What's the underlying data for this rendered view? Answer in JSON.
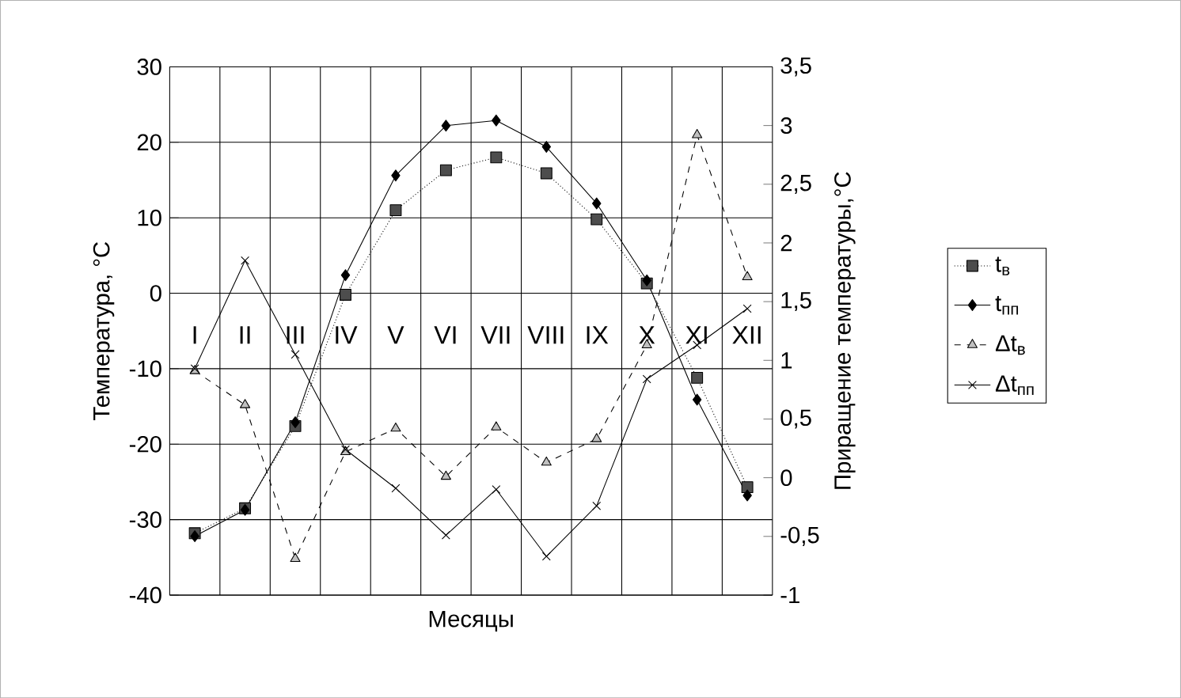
{
  "chart_data": {
    "type": "line",
    "xlabel": "Месяцы",
    "ylabel": "Температура, °C",
    "y2label": "Приращение температуры,°C",
    "categories": [
      "I",
      "II",
      "III",
      "IV",
      "V",
      "VI",
      "VII",
      "VIII",
      "IX",
      "X",
      "XI",
      "XII"
    ],
    "ylim": [
      -40,
      30
    ],
    "yticks": [
      -40,
      -30,
      -20,
      -10,
      0,
      10,
      20,
      30
    ],
    "y2lim": [
      -1,
      3.5
    ],
    "y2ticks": [
      -1,
      {
        "value": -0.5,
        "label": "-0,5"
      },
      0,
      {
        "value": 0.5,
        "label": "0,5"
      },
      1,
      {
        "value": 1.5,
        "label": "1,5"
      },
      2,
      {
        "value": 2.5,
        "label": "2,5"
      },
      3,
      {
        "value": 3.5,
        "label": "3,5"
      }
    ],
    "grid": true,
    "legend": "right",
    "series": [
      {
        "name": "t$_{в}$",
        "color": "#4d4d4d",
        "marker": "square",
        "line_style": "dotted",
        "values": [
          -31.8,
          -28.5,
          -17.6,
          -0.2,
          11.0,
          16.3,
          18.0,
          15.9,
          9.8,
          1.3,
          -11.2,
          -25.7
        ]
      },
      {
        "name": "t$_{пп}$",
        "color": "#000000",
        "marker": "diamond",
        "line_style": "solid",
        "values": [
          -32.2,
          -28.7,
          -17.1,
          2.4,
          15.6,
          22.2,
          22.9,
          19.4,
          11.9,
          1.7,
          -14.1,
          -26.8
        ]
      },
      {
        "name": "Δt$_{в}$",
        "color": "#c0c0c0",
        "marker": "triangle",
        "line_style": "dashed",
        "axis": "y2",
        "values": [
          0.91,
          0.62,
          -0.69,
          0.22,
          0.42,
          0.01,
          0.43,
          0.13,
          0.33,
          1.13,
          2.92,
          1.71
        ]
      },
      {
        "name": "Δt$_{пп}$",
        "color": "#000000",
        "marker": "cross",
        "line_style": "solid",
        "axis": "y2",
        "values": [
          0.93,
          1.85,
          1.05,
          0.24,
          -0.09,
          -0.49,
          -0.1,
          -0.67,
          -0.24,
          0.84,
          1.13,
          1.44
        ]
      }
    ]
  }
}
